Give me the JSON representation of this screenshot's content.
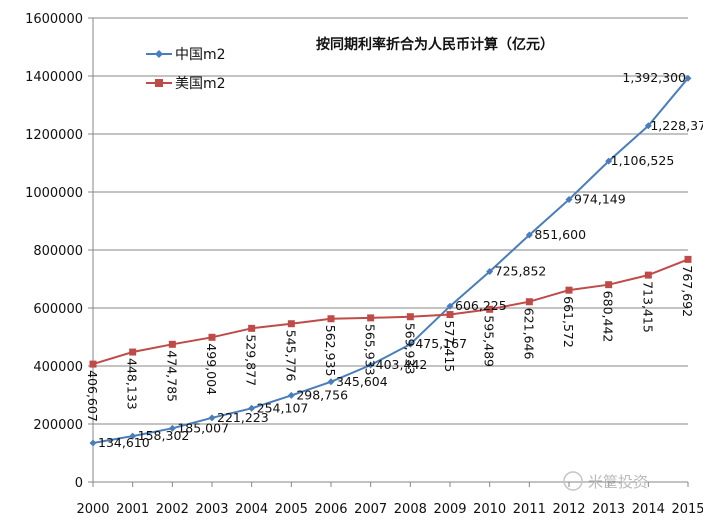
{
  "chart_data": {
    "type": "line",
    "title": "按同期利率折合为人民币计算（亿元）",
    "xlabel": "",
    "ylabel": "",
    "categories": [
      "2000",
      "2001",
      "2002",
      "2003",
      "2004",
      "2005",
      "2006",
      "2007",
      "2008",
      "2009",
      "2010",
      "2011",
      "2012",
      "2013",
      "2014",
      "2015"
    ],
    "ylim": [
      0,
      1600000
    ],
    "yticks": [
      "0",
      "200000",
      "400000",
      "600000",
      "800000",
      "1000000",
      "1200000",
      "1400000",
      "1600000"
    ],
    "grid": "horizontal",
    "legend": "top-left",
    "series": [
      {
        "name": "中国m2",
        "color": "#4a7ebb",
        "values": [
          134610,
          158302,
          185007,
          221223,
          254107,
          298756,
          345604,
          403442,
          475167,
          606225,
          725852,
          851600,
          974149,
          1106525,
          1228375,
          1392300
        ],
        "labels": [
          "134,610",
          "158,302",
          "185,007",
          "221,223",
          "254,107",
          "298,756",
          "345,604",
          "403,442",
          "475,167",
          "606,225",
          "725,852",
          "851,600",
          "974,149",
          "1,106,525",
          "1,228,375",
          "1,392,300"
        ]
      },
      {
        "name": "美国m2",
        "color": "#be4b48",
        "values": [
          406607,
          448133,
          474785,
          499004,
          529877,
          545776,
          562935,
          565933,
          569933,
          577415,
          595489,
          621646,
          661572,
          680442,
          713415,
          767692
        ],
        "labels": [
          "406,607",
          "448,133",
          "474,785",
          "499,004",
          "529,877",
          "545,776",
          "562,935",
          "565,933",
          "569,933",
          "577,415",
          "595,489",
          "621,646",
          "661,572",
          "680,442",
          "713,415",
          "767,692"
        ]
      }
    ]
  },
  "watermark": "米筐投资"
}
